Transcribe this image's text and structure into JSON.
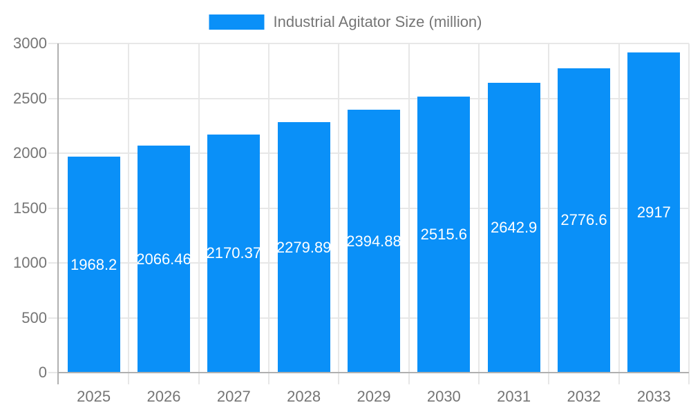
{
  "legend": {
    "label": "Industrial Agitator Size (million)"
  },
  "colors": {
    "bar": "#0a90f8",
    "bar_label": "#ffffff",
    "axis_text": "#757575",
    "grid": "#e7e7e7",
    "axis_line": "#b0b0b0"
  },
  "chart_data": {
    "type": "bar",
    "title": "Industrial Agitator Size (million)",
    "series_name": "Industrial Agitator Size (million)",
    "categories": [
      "2025",
      "2026",
      "2027",
      "2028",
      "2029",
      "2030",
      "2031",
      "2032",
      "2033"
    ],
    "values": [
      1968.2,
      2066.46,
      2170.37,
      2279.89,
      2394.88,
      2515.6,
      2642.9,
      2776.6,
      2917
    ],
    "bar_labels": [
      "1968.2",
      "2066.46",
      "2170.37",
      "2279.89",
      "2394.88",
      "2515.6",
      "2642.9",
      "2776.6",
      "2917"
    ],
    "xlabel": "",
    "ylabel": "",
    "ylim": [
      0,
      3000
    ],
    "y_ticks": [
      0,
      500,
      1000,
      1500,
      2000,
      2500,
      3000
    ],
    "grid": true,
    "legend_position": "top",
    "bar_label_position": "inside-middle"
  }
}
